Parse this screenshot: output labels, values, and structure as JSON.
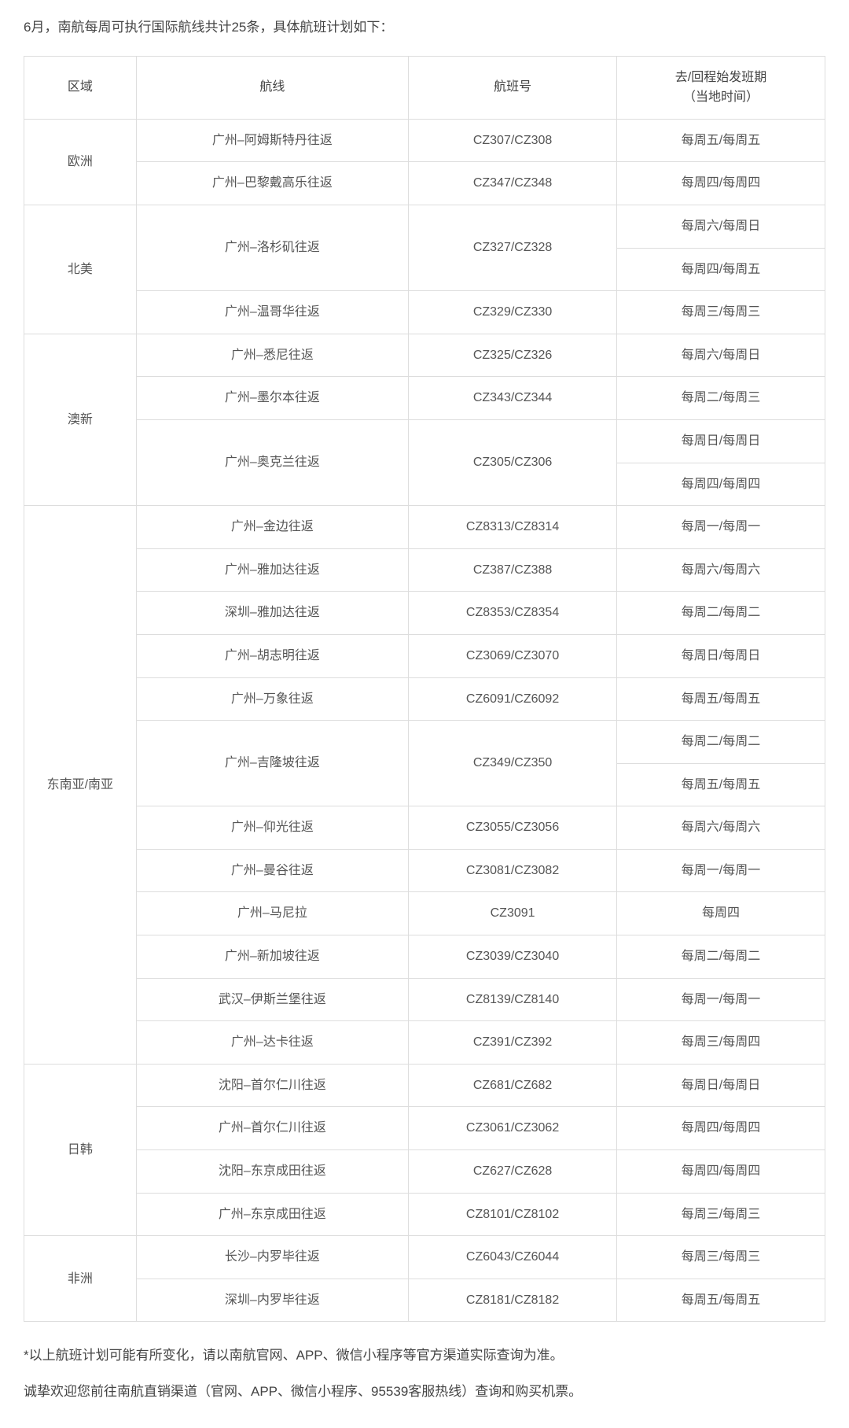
{
  "intro_text": "6月，南航每周可执行国际航线共计25条，具体航班计划如下：",
  "columns": {
    "region": "区域",
    "route": "航线",
    "flight_no": "航班号",
    "schedule": "去/回程始发班期\n（当地时间）"
  },
  "regions": [
    {
      "name": "欧洲",
      "rows": [
        {
          "route": "广州–阿姆斯特丹往返",
          "flight_no": "CZ307/CZ308",
          "schedule": "每周五/每周五"
        },
        {
          "route": "广州–巴黎戴高乐往返",
          "flight_no": "CZ347/CZ348",
          "schedule": "每周四/每周四"
        }
      ]
    },
    {
      "name": "北美",
      "rows": [
        {
          "route": "广州–洛杉矶往返",
          "route_rowspan": 2,
          "flight_no": "CZ327/CZ328",
          "flight_rowspan": 2,
          "schedule": "每周六/每周日"
        },
        {
          "schedule": "每周四/每周五"
        },
        {
          "route": "广州–温哥华往返",
          "flight_no": "CZ329/CZ330",
          "schedule": "每周三/每周三"
        }
      ]
    },
    {
      "name": "澳新",
      "rows": [
        {
          "route": "广州–悉尼往返",
          "flight_no": "CZ325/CZ326",
          "schedule": "每周六/每周日"
        },
        {
          "route": "广州–墨尔本往返",
          "flight_no": "CZ343/CZ344",
          "schedule": "每周二/每周三"
        },
        {
          "route": "广州–奥克兰往返",
          "route_rowspan": 2,
          "flight_no": "CZ305/CZ306",
          "flight_rowspan": 2,
          "schedule": "每周日/每周日"
        },
        {
          "schedule": "每周四/每周四"
        }
      ]
    },
    {
      "name": "东南亚/南亚",
      "rows": [
        {
          "route": "广州–金边往返",
          "flight_no": "CZ8313/CZ8314",
          "schedule": "每周一/每周一"
        },
        {
          "route": "广州–雅加达往返",
          "flight_no": "CZ387/CZ388",
          "schedule": "每周六/每周六"
        },
        {
          "route": "深圳–雅加达往返",
          "flight_no": "CZ8353/CZ8354",
          "schedule": "每周二/每周二"
        },
        {
          "route": "广州–胡志明往返",
          "flight_no": "CZ3069/CZ3070",
          "schedule": "每周日/每周日"
        },
        {
          "route": "广州–万象往返",
          "flight_no": "CZ6091/CZ6092",
          "schedule": "每周五/每周五"
        },
        {
          "route": "广州–吉隆坡往返",
          "route_rowspan": 2,
          "flight_no": "CZ349/CZ350",
          "flight_rowspan": 2,
          "schedule": "每周二/每周二"
        },
        {
          "schedule": "每周五/每周五"
        },
        {
          "route": "广州–仰光往返",
          "flight_no": "CZ3055/CZ3056",
          "schedule": "每周六/每周六"
        },
        {
          "route": "广州–曼谷往返",
          "flight_no": "CZ3081/CZ3082",
          "schedule": "每周一/每周一"
        },
        {
          "route": "广州–马尼拉",
          "flight_no": "CZ3091",
          "schedule": "每周四"
        },
        {
          "route": "广州–新加坡往返",
          "flight_no": "CZ3039/CZ3040",
          "schedule": "每周二/每周二"
        },
        {
          "route": "武汉–伊斯兰堡往返",
          "flight_no": "CZ8139/CZ8140",
          "schedule": "每周一/每周一"
        },
        {
          "route": "广州–达卡往返",
          "flight_no": "CZ391/CZ392",
          "schedule": "每周三/每周四"
        }
      ]
    },
    {
      "name": "日韩",
      "rows": [
        {
          "route": "沈阳–首尔仁川往返",
          "flight_no": "CZ681/CZ682",
          "schedule": "每周日/每周日"
        },
        {
          "route": "广州–首尔仁川往返",
          "flight_no": "CZ3061/CZ3062",
          "schedule": "每周四/每周四"
        },
        {
          "route": "沈阳–东京成田往返",
          "flight_no": "CZ627/CZ628",
          "schedule": "每周四/每周四"
        },
        {
          "route": "广州–东京成田往返",
          "flight_no": "CZ8101/CZ8102",
          "schedule": "每周三/每周三"
        }
      ]
    },
    {
      "name": "非洲",
      "rows": [
        {
          "route": "长沙–内罗毕往返",
          "flight_no": "CZ6043/CZ6044",
          "schedule": "每周三/每周三"
        },
        {
          "route": "深圳–内罗毕往返",
          "flight_no": "CZ8181/CZ8182",
          "schedule": "每周五/每周五"
        }
      ]
    }
  ],
  "footer": {
    "note1": "*以上航班计划可能有所变化，请以南航官网、APP、微信小程序等官方渠道实际查询为准。",
    "note2": "诚挚欢迎您前往南航直销渠道（官网、APP、微信小程序、95539客服热线）查询和购买机票。"
  },
  "styles": {
    "border_color": "#dddddd",
    "text_color": "#555555",
    "intro_color": "#444444",
    "background_color": "#ffffff",
    "body_fontsize": 16,
    "intro_fontsize": 17
  }
}
